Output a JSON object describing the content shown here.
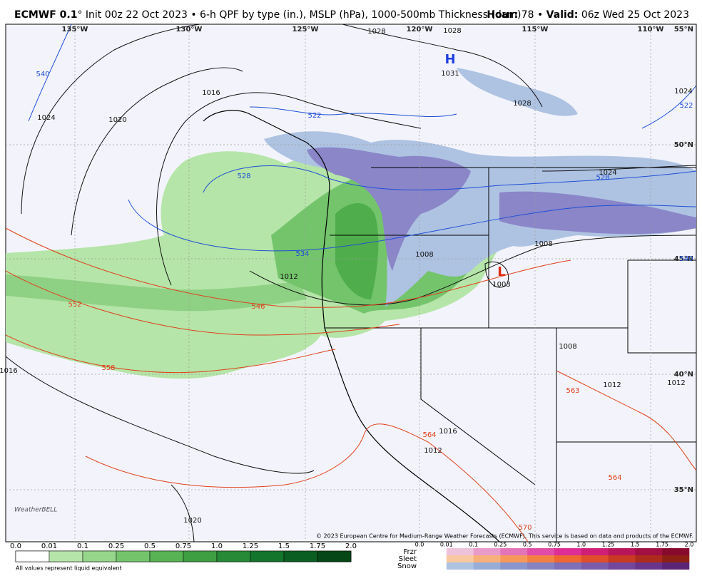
{
  "header": {
    "model": "ECMWF 0.1",
    "description": "° Init 00z 22 Oct 2023 • 6-h QPF by type (in.), MSLP (hPa), 1000-500mb Thickness (dam)",
    "hour_label": "Hour:",
    "hour": "78",
    "separator": "•",
    "valid_label": "Valid:",
    "valid": " 06z Wed 25 Oct 2023"
  },
  "map": {
    "longitudes": [
      "135°W",
      "130°W",
      "125°W",
      "120°W",
      "115°W",
      "110°W"
    ],
    "latitudes": [
      "55°N",
      "50°N",
      "45°N",
      "40°N",
      "35°N"
    ],
    "isobar_labels": [
      "1028",
      "1028",
      "1024",
      "1020",
      "1016",
      "1031",
      "1028",
      "1024",
      "1024",
      "1012",
      "1008",
      "1008",
      "1003",
      "1008",
      "1012",
      "1012",
      "1016",
      "1012",
      "1016",
      "1020"
    ],
    "blue_thickness_labels": [
      "540",
      "522",
      "522",
      "528",
      "528",
      "534",
      "540"
    ],
    "red_thickness_labels": [
      "552",
      "546",
      "558",
      "564",
      "563",
      "564",
      "570"
    ],
    "high": "H",
    "low": "L",
    "logo": "WeatherBELL",
    "copyright": "© 2023 European Centre for Medium-Range Weather Forecasts (ECMWF). This service is based on data and products of the ECMWF."
  },
  "legend": {
    "rain_ticks": [
      "0.0",
      "0.01",
      "0.1",
      "0.25",
      "0.5",
      "0.75",
      "1.0",
      "1.25",
      "1.5",
      "1.75",
      "2.0"
    ],
    "rain_colors": [
      "#ffffff",
      "#b5e5a8",
      "#96d68a",
      "#74c46c",
      "#58b354",
      "#3d9e42",
      "#268a36",
      "#13742b",
      "#0b5e22",
      "#054716"
    ],
    "type_ticks": [
      "0.0",
      "0.01",
      "0.1",
      "0.25",
      "0.5",
      "0.75",
      "1.0",
      "1.25",
      "1.5",
      "1.75",
      "2.0"
    ],
    "types": [
      {
        "name": "Frzr",
        "colors": [
          "#efc2dc",
          "#e99bc9",
          "#e474b8",
          "#e04ca8",
          "#dc2e95",
          "#cf1f77",
          "#b9155a",
          "#a10f43",
          "#870a2d"
        ]
      },
      {
        "name": "Sleet",
        "colors": [
          "#f8c8a0",
          "#f7b07a",
          "#f6985a",
          "#f47f42",
          "#ef6632",
          "#e04d2a",
          "#c93a22",
          "#ad2b1a",
          "#8e1f14"
        ]
      },
      {
        "name": "Snow",
        "colors": [
          "#aec3e2",
          "#98acd8",
          "#8a95cd",
          "#8583c2",
          "#7e6fb7",
          "#7a5cab",
          "#73479c",
          "#69358a",
          "#5c2477"
        ]
      }
    ],
    "note": "All values represent liquid equivalent"
  }
}
